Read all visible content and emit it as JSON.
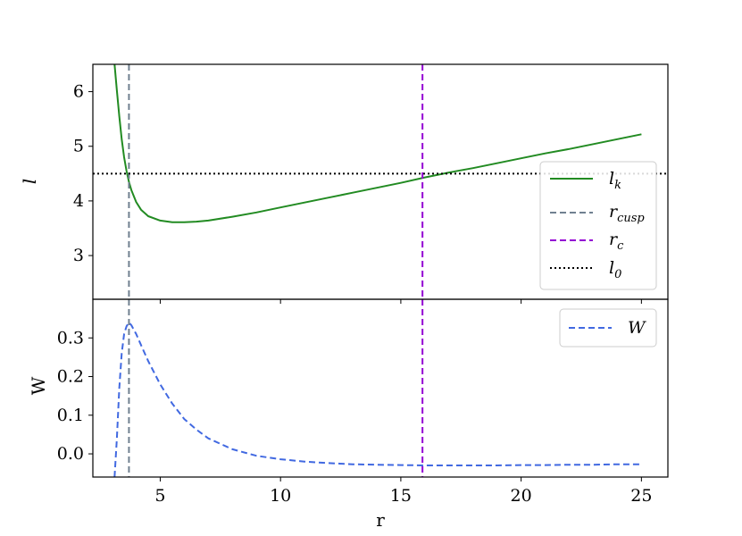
{
  "chart_data": [
    {
      "type": "line",
      "panel": "top",
      "xlabel": "",
      "ylabel": "l",
      "xlim": [
        2.2,
        26.1
      ],
      "ylim": [
        2.2,
        6.5
      ],
      "y_ticks": [
        3,
        4,
        5,
        6
      ],
      "grid": false,
      "legend_placement": "center-right",
      "series": [
        {
          "name": "l_k",
          "color": "#228b22",
          "style": "solid",
          "x": [
            3.1,
            3.2,
            3.3,
            3.4,
            3.5,
            3.6,
            3.7,
            3.8,
            4.0,
            4.2,
            4.5,
            5.0,
            5.5,
            6.0,
            6.5,
            7.0,
            8.0,
            9.0,
            10.0,
            11.0,
            12.0,
            13.0,
            14.0,
            15.0,
            16.0,
            17.0,
            18.0,
            19.0,
            20.0,
            21.0,
            22.0,
            23.0,
            24.0,
            25.0
          ],
          "y": [
            6.5,
            6.02,
            5.55,
            5.13,
            4.8,
            4.55,
            4.35,
            4.2,
            3.98,
            3.84,
            3.72,
            3.64,
            3.61,
            3.61,
            3.62,
            3.64,
            3.71,
            3.79,
            3.88,
            3.97,
            4.06,
            4.15,
            4.24,
            4.33,
            4.43,
            4.52,
            4.6,
            4.69,
            4.78,
            4.87,
            4.95,
            5.04,
            5.13,
            5.22
          ]
        },
        {
          "name": "r_cusp",
          "color": "#708090",
          "style": "dashed",
          "vline": 3.7
        },
        {
          "name": "r_c",
          "color": "#9400d3",
          "style": "dashed",
          "vline": 15.9
        },
        {
          "name": "l_0",
          "color": "#000000",
          "style": "dotted",
          "hline": 4.5
        }
      ]
    },
    {
      "type": "line",
      "panel": "bottom",
      "xlabel": "r",
      "ylabel": "W",
      "xlim": [
        2.2,
        26.1
      ],
      "ylim": [
        -0.06,
        0.4
      ],
      "x_ticks": [
        5,
        10,
        15,
        20,
        25
      ],
      "y_ticks": [
        "0.0",
        "0.1",
        "0.2",
        "0.3"
      ],
      "grid": false,
      "legend_placement": "upper-right",
      "series": [
        {
          "name": "W",
          "color": "#4169e1",
          "style": "dashed",
          "x": [
            3.1,
            3.2,
            3.3,
            3.4,
            3.5,
            3.6,
            3.7,
            3.8,
            4.0,
            4.25,
            4.5,
            5.0,
            5.5,
            6.0,
            6.5,
            7.0,
            8.0,
            9.0,
            10.0,
            11.0,
            12.0,
            13.0,
            14.0,
            15.0,
            16.0,
            17.0,
            18.0,
            19.0,
            20.0,
            21.0,
            22.0,
            23.0,
            24.0,
            25.0
          ],
          "y": [
            -0.06,
            0.04,
            0.17,
            0.26,
            0.31,
            0.33,
            0.34,
            0.333,
            0.31,
            0.275,
            0.24,
            0.18,
            0.13,
            0.09,
            0.063,
            0.04,
            0.012,
            -0.005,
            -0.014,
            -0.02,
            -0.024,
            -0.027,
            -0.028,
            -0.029,
            -0.03,
            -0.03,
            -0.03,
            -0.03,
            -0.029,
            -0.029,
            -0.028,
            -0.028,
            -0.027,
            -0.027
          ]
        },
        {
          "name": "r_cusp",
          "color": "#708090",
          "style": "dashed",
          "vline": 3.7
        },
        {
          "name": "r_c",
          "color": "#9400d3",
          "style": "dashed",
          "vline": 15.9
        }
      ]
    }
  ]
}
